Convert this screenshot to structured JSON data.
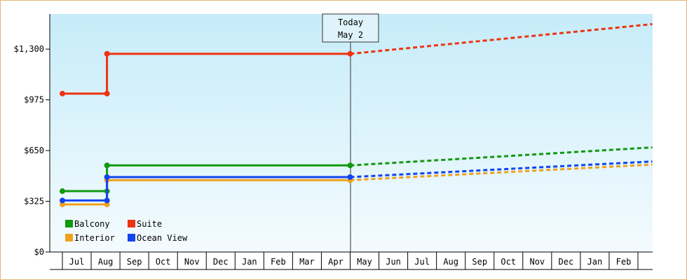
{
  "chart_data": {
    "type": "line",
    "yticks": [
      "$0",
      "$325",
      "$650",
      "$975",
      "$1,300"
    ],
    "ytick_values": [
      0,
      325,
      650,
      975,
      1300
    ],
    "ylim": [
      0,
      1525
    ],
    "months": [
      "Jul",
      "Aug",
      "Sep",
      "Oct",
      "Nov",
      "Dec",
      "Jan",
      "Feb",
      "Mar",
      "Apr",
      "May",
      "Jun",
      "Jul",
      "Aug",
      "Sep",
      "Oct",
      "Nov",
      "Dec",
      "Jan",
      "Feb"
    ],
    "today_label_line1": "Today",
    "today_label_line2": "May 2",
    "today_x": 10.0,
    "series": [
      {
        "name": "Balcony",
        "color": "#119911",
        "historical": [
          [
            0,
            390
          ],
          [
            1.55,
            390
          ],
          [
            1.55,
            555
          ],
          [
            10.0,
            555
          ]
        ],
        "forecast": [
          [
            10.0,
            555
          ],
          [
            20.5,
            670
          ]
        ]
      },
      {
        "name": "Suite",
        "color": "#ee3311",
        "historical": [
          [
            0,
            1015
          ],
          [
            1.55,
            1015
          ],
          [
            1.55,
            1270
          ],
          [
            10.0,
            1270
          ]
        ],
        "forecast": [
          [
            10.0,
            1270
          ],
          [
            20.5,
            1460
          ]
        ]
      },
      {
        "name": "Interior",
        "color": "#f0a020",
        "historical": [
          [
            0,
            305
          ],
          [
            1.55,
            305
          ],
          [
            1.55,
            460
          ],
          [
            10.0,
            460
          ]
        ],
        "forecast": [
          [
            10.0,
            460
          ],
          [
            20.5,
            560
          ]
        ]
      },
      {
        "name": "Ocean View",
        "color": "#1144ee",
        "historical": [
          [
            0,
            330
          ],
          [
            1.55,
            330
          ],
          [
            1.55,
            480
          ],
          [
            10.0,
            480
          ]
        ],
        "forecast": [
          [
            10.0,
            480
          ],
          [
            20.5,
            580
          ]
        ]
      }
    ]
  }
}
